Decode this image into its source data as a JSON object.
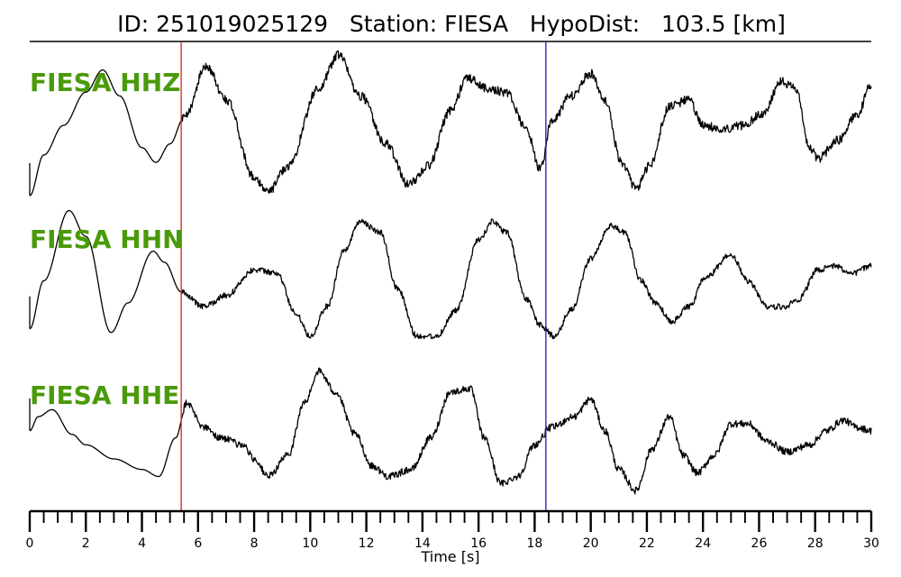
{
  "chart_data": {
    "type": "line",
    "title": "ID: 251019025129   Station: FIESA   HypoDist:   103.5 [km]",
    "xlabel": "Time [s]",
    "xlim": [
      0,
      30
    ],
    "x_major_ticks": [
      "0",
      "2",
      "4",
      "6",
      "8",
      "10",
      "12",
      "14",
      "16",
      "18",
      "20",
      "22",
      "24",
      "26",
      "28",
      "30"
    ],
    "x_minor_step": 0.5,
    "label_color": "#4a9a0a",
    "trace_color": "#000000",
    "markers": [
      {
        "time": 5.4,
        "color": "#e0201a"
      },
      {
        "time": 18.4,
        "color": "#1a1ac8"
      }
    ],
    "series": [
      {
        "name": "FIESA HHZ",
        "noise_from": 5.4,
        "noise": 0.06,
        "points": [
          [
            0,
            -1.0
          ],
          [
            0.5,
            -0.45
          ],
          [
            1.2,
            -0.05
          ],
          [
            2.0,
            0.4
          ],
          [
            2.6,
            0.7
          ],
          [
            3.2,
            0.35
          ],
          [
            4.0,
            -0.35
          ],
          [
            4.5,
            -0.55
          ],
          [
            5.0,
            -0.3
          ],
          [
            5.5,
            0.05
          ],
          [
            6.3,
            0.75
          ],
          [
            7.0,
            0.3
          ],
          [
            8.0,
            -0.75
          ],
          [
            8.5,
            -0.95
          ],
          [
            9.2,
            -0.6
          ],
          [
            10.3,
            0.45
          ],
          [
            11.0,
            0.9
          ],
          [
            11.8,
            0.35
          ],
          [
            12.7,
            -0.3
          ],
          [
            13.5,
            -0.85
          ],
          [
            14.2,
            -0.6
          ],
          [
            15.0,
            0.15
          ],
          [
            15.6,
            0.6
          ],
          [
            16.3,
            0.45
          ],
          [
            17.0,
            0.4
          ],
          [
            17.7,
            -0.1
          ],
          [
            18.2,
            -0.65
          ],
          [
            18.6,
            0.0
          ],
          [
            19.3,
            0.35
          ],
          [
            20.0,
            0.65
          ],
          [
            20.5,
            0.3
          ],
          [
            21.1,
            -0.55
          ],
          [
            21.6,
            -0.9
          ],
          [
            22.1,
            -0.6
          ],
          [
            22.8,
            0.2
          ],
          [
            23.5,
            0.3
          ],
          [
            24.0,
            -0.05
          ],
          [
            24.7,
            -0.1
          ],
          [
            25.4,
            -0.05
          ],
          [
            26.1,
            0.1
          ],
          [
            26.8,
            0.55
          ],
          [
            27.3,
            0.45
          ],
          [
            27.8,
            -0.35
          ],
          [
            28.1,
            -0.5
          ],
          [
            28.8,
            -0.25
          ],
          [
            29.5,
            0.1
          ],
          [
            30.0,
            0.5
          ]
        ]
      },
      {
        "name": "FIESA HHN",
        "noise_from": 5.4,
        "noise": 0.04,
        "points": [
          [
            0,
            -0.85
          ],
          [
            0.5,
            -0.2
          ],
          [
            1.4,
            0.75
          ],
          [
            2.0,
            0.4
          ],
          [
            2.9,
            -0.9
          ],
          [
            3.5,
            -0.5
          ],
          [
            4.4,
            0.2
          ],
          [
            4.8,
            0.05
          ],
          [
            5.4,
            -0.35
          ],
          [
            6.2,
            -0.55
          ],
          [
            7.0,
            -0.4
          ],
          [
            8.0,
            -0.05
          ],
          [
            8.8,
            -0.1
          ],
          [
            9.5,
            -0.65
          ],
          [
            10.0,
            -0.95
          ],
          [
            10.6,
            -0.55
          ],
          [
            11.2,
            0.2
          ],
          [
            11.8,
            0.6
          ],
          [
            12.5,
            0.45
          ],
          [
            13.1,
            -0.3
          ],
          [
            13.8,
            -0.95
          ],
          [
            14.5,
            -0.95
          ],
          [
            15.2,
            -0.6
          ],
          [
            16.0,
            0.35
          ],
          [
            16.5,
            0.6
          ],
          [
            17.0,
            0.45
          ],
          [
            17.7,
            -0.45
          ],
          [
            18.2,
            -0.8
          ],
          [
            18.7,
            -0.95
          ],
          [
            19.3,
            -0.6
          ],
          [
            20.0,
            0.1
          ],
          [
            20.7,
            0.55
          ],
          [
            21.2,
            0.45
          ],
          [
            21.8,
            -0.2
          ],
          [
            22.3,
            -0.5
          ],
          [
            22.9,
            -0.75
          ],
          [
            23.5,
            -0.55
          ],
          [
            24.1,
            -0.15
          ],
          [
            25.0,
            0.15
          ],
          [
            25.6,
            -0.2
          ],
          [
            26.3,
            -0.55
          ],
          [
            26.9,
            -0.55
          ],
          [
            27.4,
            -0.45
          ],
          [
            28.1,
            -0.05
          ],
          [
            28.7,
            0.0
          ],
          [
            29.3,
            -0.1
          ],
          [
            30.0,
            0.0
          ]
        ]
      },
      {
        "name": "FIESA HHE",
        "noise_from": 5.4,
        "noise": 0.05,
        "points": [
          [
            0,
            -0.1
          ],
          [
            0.3,
            0.1
          ],
          [
            0.8,
            0.2
          ],
          [
            1.5,
            -0.15
          ],
          [
            2.0,
            -0.3
          ],
          [
            3.0,
            -0.5
          ],
          [
            4.0,
            -0.65
          ],
          [
            4.6,
            -0.75
          ],
          [
            5.2,
            -0.2
          ],
          [
            5.6,
            0.3
          ],
          [
            6.2,
            -0.05
          ],
          [
            6.8,
            -0.2
          ],
          [
            7.6,
            -0.3
          ],
          [
            8.0,
            -0.5
          ],
          [
            8.5,
            -0.75
          ],
          [
            9.2,
            -0.45
          ],
          [
            9.8,
            0.3
          ],
          [
            10.3,
            0.75
          ],
          [
            10.9,
            0.45
          ],
          [
            11.6,
            -0.15
          ],
          [
            12.2,
            -0.6
          ],
          [
            12.8,
            -0.75
          ],
          [
            13.6,
            -0.65
          ],
          [
            14.3,
            -0.2
          ],
          [
            15.0,
            0.45
          ],
          [
            15.7,
            0.5
          ],
          [
            16.2,
            -0.2
          ],
          [
            16.8,
            -0.85
          ],
          [
            17.4,
            -0.75
          ],
          [
            18.0,
            -0.3
          ],
          [
            18.6,
            -0.05
          ],
          [
            19.4,
            0.1
          ],
          [
            20.0,
            0.35
          ],
          [
            20.5,
            -0.1
          ],
          [
            21.0,
            -0.65
          ],
          [
            21.6,
            -0.95
          ],
          [
            22.2,
            -0.35
          ],
          [
            22.8,
            0.1
          ],
          [
            23.3,
            -0.45
          ],
          [
            23.8,
            -0.7
          ],
          [
            24.4,
            -0.45
          ],
          [
            25.0,
            0.0
          ],
          [
            25.6,
            0.0
          ],
          [
            26.3,
            -0.25
          ],
          [
            27.0,
            -0.4
          ],
          [
            27.8,
            -0.3
          ],
          [
            28.4,
            -0.1
          ],
          [
            29.0,
            0.05
          ],
          [
            29.5,
            -0.05
          ],
          [
            30.0,
            -0.1
          ]
        ]
      }
    ]
  }
}
